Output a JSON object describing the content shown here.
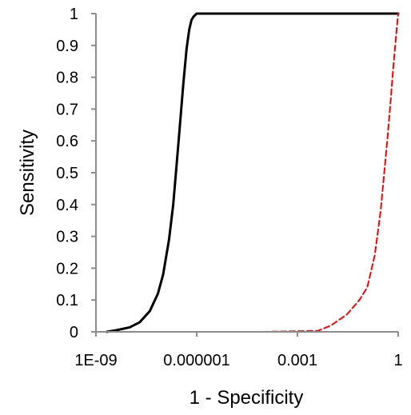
{
  "chart_data": {
    "type": "line",
    "xlabel": "1 - Specificity",
    "ylabel": "Sensitivity",
    "x_scale": "log",
    "xlim": [
      1e-09,
      1
    ],
    "ylim": [
      0,
      1
    ],
    "x_ticks": [
      {
        "value": 1e-09,
        "label": "1E-09"
      },
      {
        "value": 1e-06,
        "label": "0.000001"
      },
      {
        "value": 0.001,
        "label": "0.001"
      },
      {
        "value": 1,
        "label": "1"
      }
    ],
    "y_ticks": [
      {
        "value": 0,
        "label": "0"
      },
      {
        "value": 0.1,
        "label": "0.1"
      },
      {
        "value": 0.2,
        "label": "0.2"
      },
      {
        "value": 0.3,
        "label": "0.3"
      },
      {
        "value": 0.4,
        "label": "0.4"
      },
      {
        "value": 0.5,
        "label": "0.5"
      },
      {
        "value": 0.6,
        "label": "0.6"
      },
      {
        "value": 0.7,
        "label": "0.7"
      },
      {
        "value": 0.8,
        "label": "0.8"
      },
      {
        "value": 0.9,
        "label": "0.9"
      },
      {
        "value": 1,
        "label": "1"
      }
    ],
    "grid": false,
    "series": [
      {
        "color": "#000000",
        "style": "solid",
        "points": [
          [
            2.1e-09,
            0.0
          ],
          [
            4e-09,
            0.005
          ],
          [
            1e-08,
            0.014
          ],
          [
            2e-08,
            0.03
          ],
          [
            4e-08,
            0.065
          ],
          [
            7e-08,
            0.12
          ],
          [
            1e-07,
            0.18
          ],
          [
            1.5e-07,
            0.29
          ],
          [
            2e-07,
            0.4
          ],
          [
            2.5e-07,
            0.52
          ],
          [
            3e-07,
            0.62
          ],
          [
            4e-07,
            0.78
          ],
          [
            5e-07,
            0.89
          ],
          [
            6e-07,
            0.95
          ],
          [
            7e-07,
            0.98
          ],
          [
            8e-07,
            0.99
          ],
          [
            1e-06,
            1.0
          ],
          [
            0.001,
            1.0
          ],
          [
            1,
            1.0
          ]
        ]
      },
      {
        "color": "#ff0000",
        "style": "dashed",
        "points": [
          [
            1e-09,
            0.0
          ],
          [
            1e-06,
            0.0
          ],
          [
            0.0001,
            0.0
          ],
          [
            0.001,
            0.002
          ],
          [
            0.004,
            0.003
          ],
          [
            0.01,
            0.02
          ],
          [
            0.03,
            0.055
          ],
          [
            0.07,
            0.1
          ],
          [
            0.12,
            0.14
          ],
          [
            0.2,
            0.24
          ],
          [
            0.3,
            0.38
          ],
          [
            0.4,
            0.52
          ],
          [
            0.5,
            0.63
          ],
          [
            0.6,
            0.73
          ],
          [
            0.7,
            0.82
          ],
          [
            0.8,
            0.89
          ],
          [
            0.9,
            0.95
          ],
          [
            1,
            1.0
          ]
        ]
      }
    ]
  }
}
